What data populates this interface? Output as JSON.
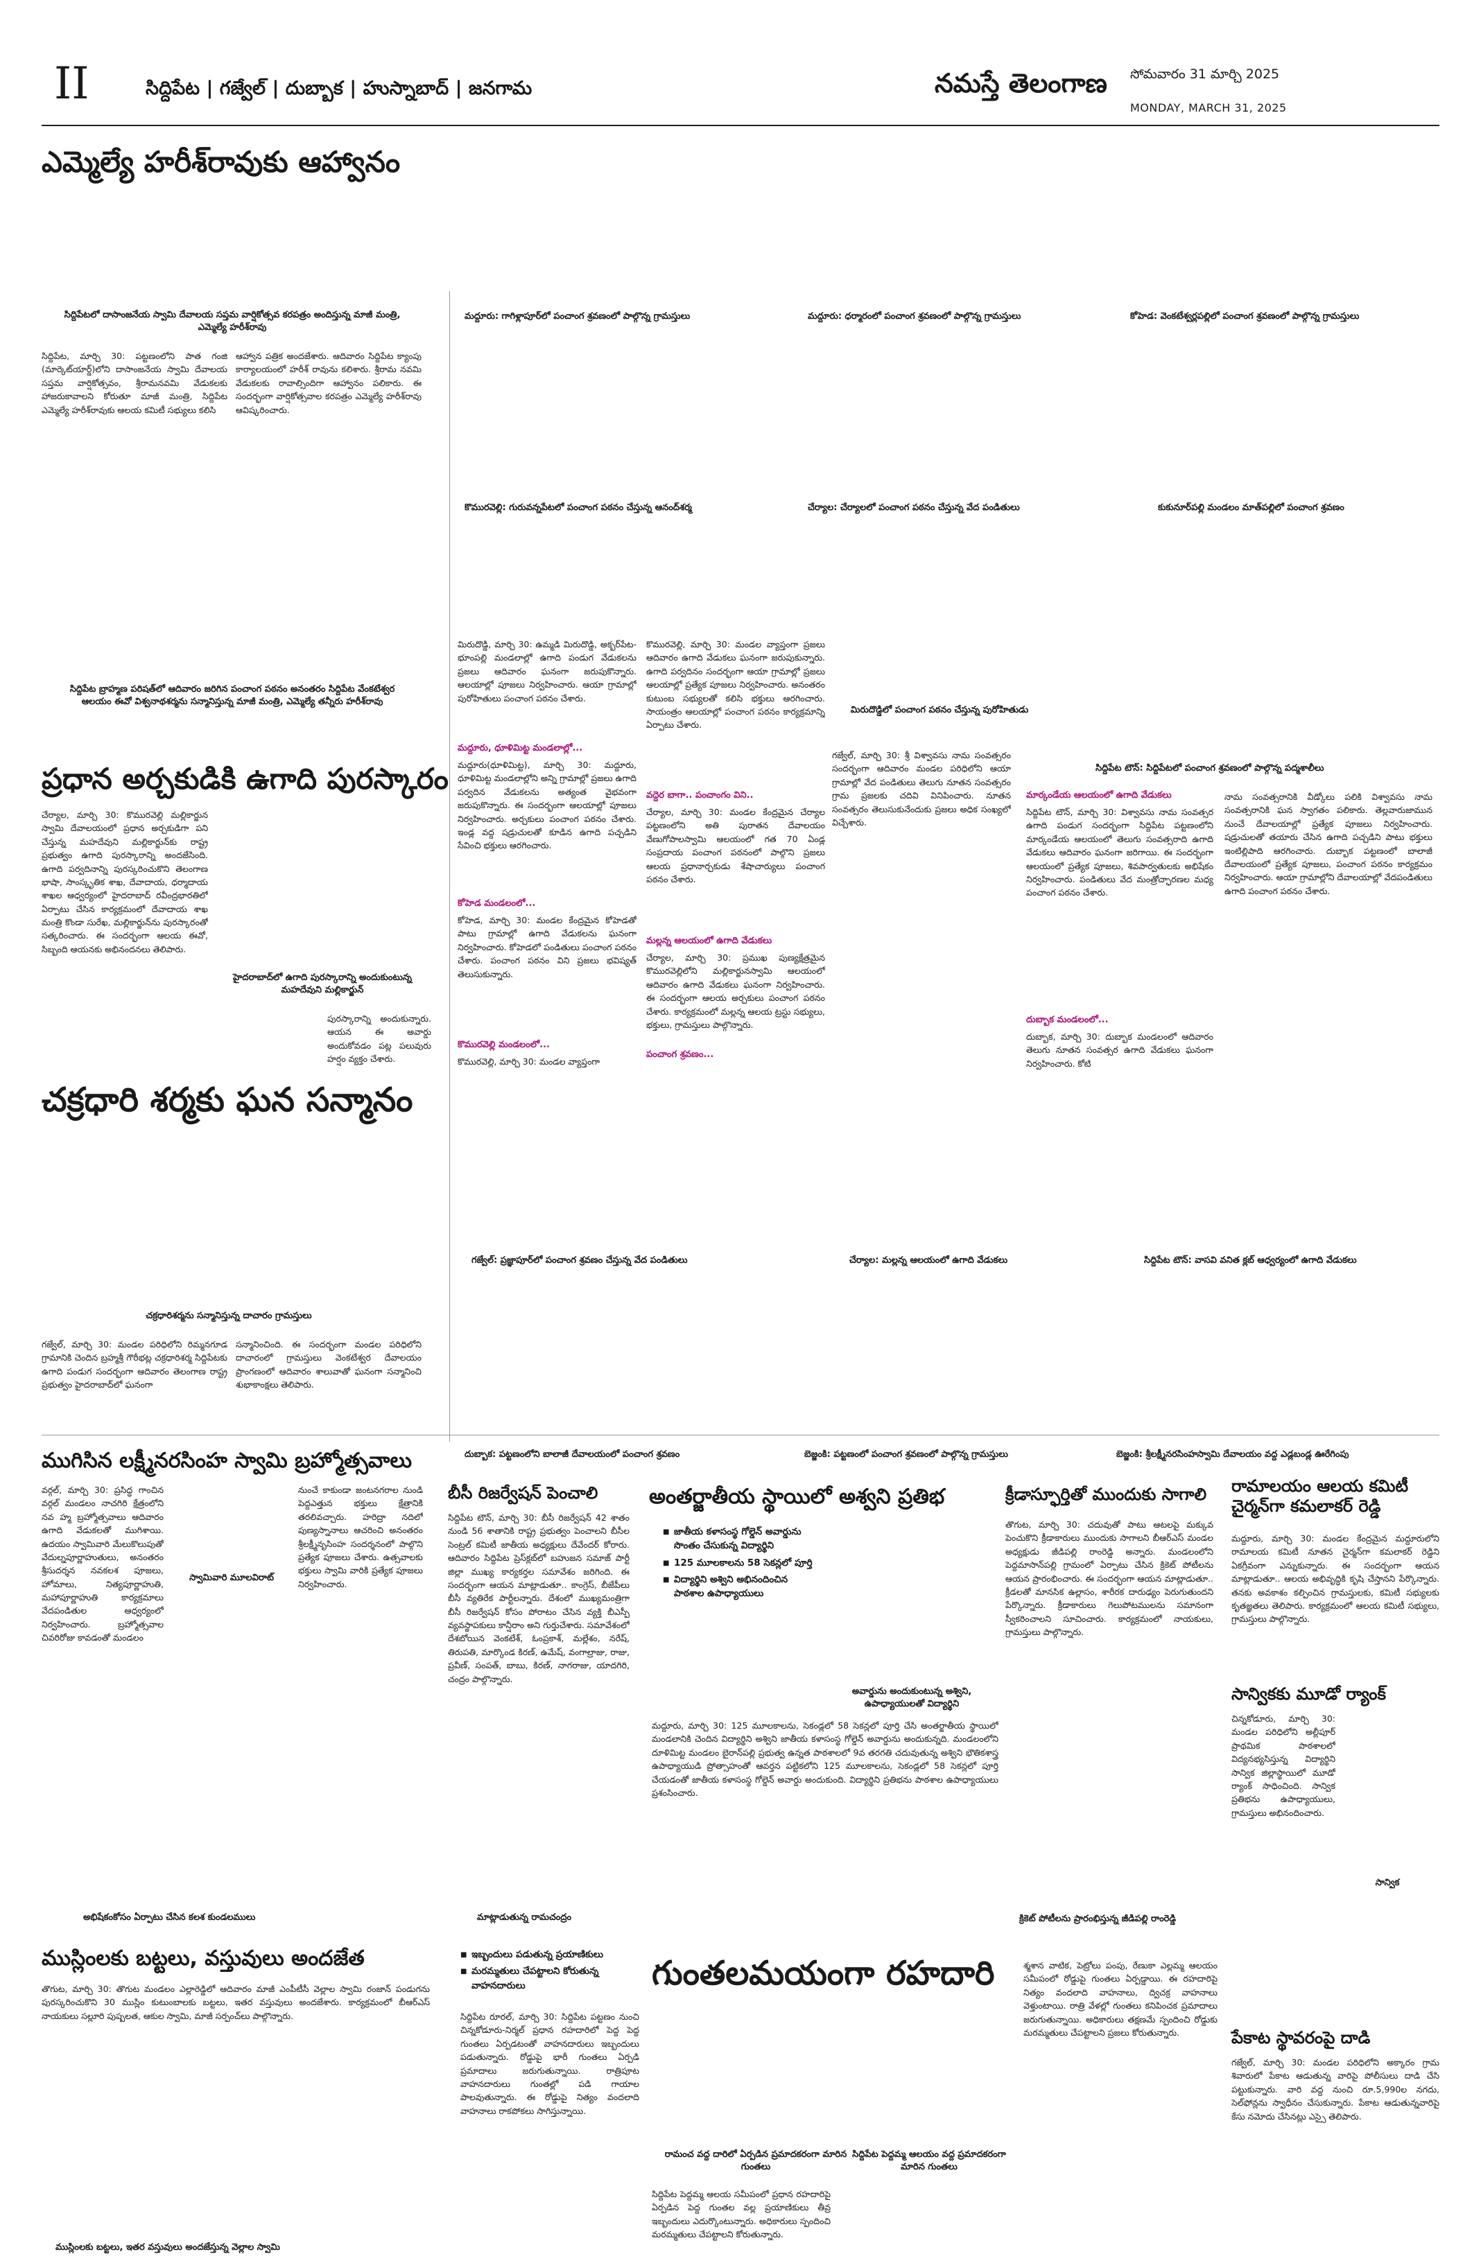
{
  "masthead": {
    "page_number": "II",
    "districts": "సిద్దిపేట | గజ్వేల్ | దుబ్బాక | హుస్నాబాద్ | జనగామ",
    "logo": "నమస్తే తెలంగాణ",
    "date_te": "సోమవారం 31 మార్చి 2025",
    "date_en": "MONDAY, MARCH 31, 2025"
  },
  "story1": {
    "headline": "ఎమ్మెల్యే హరీశ్‌రావుకు ఆహ్వానం",
    "caption": "సిద్దిపేటలో దాసాంజనేయ స్వామి దేవాలయ సప్తమ వార్షికోత్సవ కరపత్రం అందిస్తున్న మాజీ మంత్రి, ఎమ్మెల్యే హరీశ్‌రావు",
    "body_left": "సిద్దిపేట, మార్చి 30: పట్టణంలోని పాత గంజి (మార్కెట్‌యార్డ్)లోని దాసాంజనేయ స్వామి దేవాలయ సప్తమ వార్షికోత్సవం, శ్రీరామనవమి వేడుకలకు హాజరుకావాలని కోరుతూ మాజీ మంత్రి, సిద్దిపేట ఎమ్మెల్యే హరీశ్‌రావుకు ఆలయ కమిటీ సభ్యులు కలిసి",
    "body_right": "ఆహ్వాన పత్రిక అందజేశారు. ఆదివారం సిద్దిపేట క్యాంపు కార్యాలయంలో హరీశ్ రావును కలిశారు. శ్రీరామ నవమి వేడుకలకు రావాల్సిందిగా ఆహ్వానం పలికారు. ఈ సందర్భంగా వార్షికోత్సవాల కరపత్రం ఎమ్మెల్యే హరీశ్‌రావు ఆవిష్కరించారు."
  },
  "photo_captions_row1": [
    "మద్దూరు: గాగిళ్లాపూర్‌లో పంచాంగ శ్రవణంలో పాల్గొన్న గ్రామస్తులు",
    "మద్దూరు: ధర్మారంలో పంచాంగ శ్రవణంలో పాల్గొన్న గ్రామస్తులు",
    "కోహెడ: వెంకటేశ్వర్లపల్లిలో పంచాంగ శ్రవణంలో పాల్గొన్న గ్రామస్తులు"
  ],
  "photo_captions_row2": [
    "కొమురవెల్లి: గురువన్నపేటలో పంచాంగ పఠనం చేస్తున్న ఆనంద్‌శర్మ",
    "చేర్యాల: చేర్యాలలో పంచాంగ పఠనం చేస్తున్న వేద పండితులు",
    "కుకునూర్‌పల్లి మండలం మాత్‌పల్లిలో పంచాంగ శ్రవణం"
  ],
  "story2": {
    "caption": "సిద్దిపేట బ్రాహ్మణ పరిషత్‌లో ఆదివారం జరిగిన పంచాంగ పఠనం అనంతరం సిద్దిపేట వేంకటేశ్వర ఆలయం ఈవో విశ్వనాథశర్మను సన్మానిస్తున్న మాజీ మంత్రి, ఎమ్మెల్యే తన్నీరు హరీశ్‌రావు",
    "headline": "ప్రధాన అర్చకుడికి ఉగాది పురస్కారం",
    "body": "చేర్యాల, మార్చి 30: కొమురవెల్లి మల్లికార్జున స్వామి దేవాలయంలో ప్రధాన అర్చకుడిగా పని చేస్తున్న మహదేవుని మల్లికార్జున్‌కు రాష్ట్ర ప్రభుత్వం ఉగాది పురస్కారాన్ని అందజేసింది. ఉగాది పర్వదినాన్ని పురస్కరించుకొని తెలంగాణ భాషా, సాంస్కృతిక శాఖ, దేవాదాయ, ధర్మాదాయ శాఖల ఆధ్వర్యంలో హైదరాబాద్ రవీంద్రభారతిలో ఏర్పాటు చేసిన కార్యక్రమంలో దేవాదాయ శాఖ మంత్రి కొండా సురేఖ, మల్లికార్జున్‌ను పురస్కారంతో సత్కరించారు. ఈ సందర్భంగా ఆలయ ఈవో, సిబ్బంది ఆయనకు అభినందనలు తెలిపారు.",
    "photo_caption": "హైదరాబాద్‌లో ఉగాది పురస్కారాన్ని అందుకుంటున్న మహదేవుని మల్లికార్జున్",
    "body_tail": "పురస్కారాన్ని అందుకున్నారు. ఆయన ఈ అవార్డు అందుకోవడం పట్ల పలువురు హర్షం వ్యక్తం చేశారు."
  },
  "story3": {
    "headline": "చక్రధారి శర్మకు ఘన సన్మానం",
    "caption": "చక్రధారిశర్మను సన్మానిస్తున్న దాచారం గ్రామస్తులు",
    "body_left": "గజ్వేల్, మార్చి 30: మండల పరిధిలోని రిమ్మనగూడ గ్రామానికి చెందిన బ్రహ్మశ్రీ గౌరీభట్ల చక్రధారిశర్మ సిద్దిపేటకు ఉగాది పండుగ సందర్భంగా ఆదివారం తెలంగాణ రాష్ట్ర ప్రభుత్వం హైదరాబాద్‌లో ఘనంగా",
    "body_right": "సన్మానించింది. ఈ సందర్భంగా మండల పరిధిలోని దాచారంలో గ్రామస్తులు వెంకటేశ్వర దేవాలయం ప్రాంగణంలో ఆదివారం శాలువాతో ఘనంగా సన్మానించి శుభాకాంక్షలు తెలిపారు."
  },
  "center_column": {
    "body_a": "మిరుదొడ్డి, మార్చి 30: ఉమ్మడి మిరుదొడ్డి, అక్బర్‌పేట-భూంపల్లి మండలాల్లో ఉగాది పండుగ వేడుకలను ప్రజలు ఆదివారం ఘనంగా జరుపుకొన్నారు. ఆలయాల్లో పూజలు నిర్వహించారు. ఆయా గ్రామాల్లో పురోహితులు పంచాంగ పఠనం చేశారు.",
    "sub_a": "మద్దూరు, ధూళిమిట్ట మండలాల్లో...",
    "body_b": "మద్దూరు(ధూళిమిట్ట), మార్చి 30: మద్దూరు, ధూళిమిట్ట మండలాల్లోని అన్ని గ్రామాల్లో ప్రజలు ఉగాది పర్వదిన వేడుకలను అత్యంత వైభవంగా జరుపుకొన్నారు. ఈ సందర్భంగా ఆలయాల్లో పూజలు నిర్వహించారు. అర్చకులు పంచాంగ పఠనం చేశారు. ఇండ్ల వద్ద షడ్రుచులతో కూడిన ఉగాది పచ్చడిని సేవించి భక్తులు ఆరగించారు.",
    "sub_b": "కోహెడ మండలంలో...",
    "body_c": "కోహెడ, మార్చి 30: మండల కేంద్రమైన కోహెడతో పాటు గ్రామాల్లో ఉగాది వేడుకలను ఘనంగా నిర్వహించారు. కోహెడలో పండితులు పంచాంగ పఠనం చేశారు. పంచాంగ పఠనం విని ప్రజలు భవిష్యత్‌ తెలుసుకున్నారు.",
    "sub_c": "కొమురవెల్లి మండలంలో...",
    "body_d": "కొమురవెల్లి, మార్చి 30: మండల వ్యాప్తంగా ప్రజలు ఆదివారం ఉగాది వేడుకలు ఘనంగా జరుపుకున్నారు. ఉగాది పర్వదినం సందర్భంగా ఆయా గ్రామాల్లో ప్రజలు ఆలయాల్లో ప్రత్యేక పూజలు నిర్వహించారు. అనంతరం కుటుంబ సభ్యులతో కలిసి భక్తులు ఆరగించారు. సాయంత్రం ఆలయాల్లో పంచాంగ పఠనం కార్యక్రమాన్ని ఏర్పాటు చేశారు.",
    "sub_d": "వద్దెర బాగా.. పంచాంగం విని..",
    "body_e": "చేర్యాల, మార్చి 30: మండల కేంద్రమైన చేర్యాల పట్టణంలోని అతి పురాతన దేవాలయం వేణుగోపాలస్వామి ఆలయంలో గత 70 ఏండ్ల సంప్రదాయ పంచాంగ పఠనంలో పాల్గొని ప్రజలు ఆలయ ప్రధానార్చకుడు శేషాచార్యులు పంచాంగ పఠనం చేశారు.",
    "sub_e": "మల్లన్న ఆలయంలో ఉగాది వేడుకలు",
    "body_f": "చేర్యాల, మార్చి 30: ప్రముఖ పుణ్యక్షేత్రమైన కొమురవెల్లిలోని మల్లికార్జునస్వామి ఆలయంలో ఆదివారం ఉగాది వేడుకలు ఘనంగా నిర్వహించారు. ఈ సందర్భంగా ఆలయ అర్చకులు పంచాంగ పఠనం చేశారు. కార్యక్రమంలో మల్లన్న ఆలయ ట్రస్టు సభ్యులు, భక్తులు, గ్రామస్తులు పాల్గొన్నారు.",
    "sub_f": "పంచాంగ శ్రవణం...",
    "body_g": "గజ్వేల్, మార్చి 30: శ్రీ విశ్వావసు నామ సంవత్సరం సందర్భంగా ఆదివారం మండల పరిధిలోని ఆయా గ్రామాల్లో వేద పండితులు తెలుగు నూతన సంవత్సరం గ్రామ ప్రజలకు చదివి వినిపించారు. నూతన సంవత్సరం తెలుసుకునేందుకు ప్రజలు అధిక సంఖ్యలో విచ్చేశారు.",
    "caption_mid": "మిరుదొడ్డిలో పంచాంగ పఠనం చేస్తున్న పురోహితుడు"
  },
  "story4": {
    "caption": "సిద్దిపేట టౌన్: సిద్దిపేటలో పంచాంగ శ్రవణంలో పాల్గొన్న పద్మశాలీలు",
    "sub_a": "మార్కండేయ ఆలయంలో ఉగాది వేడుకలు",
    "body_a": "సిద్దిపేట టౌన్, మార్చి 30: విశ్వావసు నామ సంవత్సర ఉగాది పండుగ సందర్భంగా సిద్దిపేట పట్టణంలోని మార్కండేయ ఆలయంలో తెలుగు సంవత్సరాది ఉగాది వేడుకలు ఆదివారం ఘనంగా జరిగాయి. ఈ సందర్భంగా ఆలయంలో ప్రత్యేక పూజలు, శివపార్వతులకు అభిషేకం నిర్వహించారు. పండితులు వేద మంత్రోచ్ఛారణల మధ్య పంచాంగ పఠనం చేశారు.",
    "sub_b": "దుబ్బాక మండలంలో...",
    "body_b": "దుబ్బాక, మార్చి 30: దుబ్బాక మండలంలో ఆదివారం తెలుగు నూతన సంవత్సర ఉగాది వేడుకలు ఘనంగా నిర్వహించారు. కోటి",
    "body_c": "నామ సంవత్సరానికి వీడ్కోలు పలికి విశ్వావసు నామ సంవత్సరానికి ఘన స్వాగతం పలికారు. తెల్లవారుజామున నుంచే దేవాలయాల్లో ప్రత్యేక పూజలు నిర్వహించారు. షడ్రుచులతో తయారు చేసిన ఉగాది పచ్చడిని పాటు భక్తులు ఇంటిల్లిపాది ఆరగించారు. దుబ్బాక పట్టణంలో బాలాజీ దేవాలయంలో ప్రత్యేక పూజలు, పంచాంగ పఠనం కార్యక్రమం నిర్వహించారు. ఆయా గ్రామాల్లోని దేవాలయాల్లో వేదపండితులు ఉగాది పంచాంగ పఠనం చేశారు."
  },
  "photo_captions_row3": [
    "గజ్వేల్: ప్రజ్ఞాపూర్‌లో పంచాంగ శ్రవణం చేస్తున్న వేద పండితులు",
    "చేర్యాల: మల్లన్న ఆలయంలో ఉగాది వేడుకలు",
    "సిద్దిపేట టౌన్: వాసవి వనిత క్లబ్ ఆధ్వర్యంలో ఉగాది వేడుకలు"
  ],
  "story5": {
    "headline": "ముగిసిన లక్ష్మీనరసింహ స్వామి బ్రహ్మోత్సవాలు",
    "body": "వర్గల్, మార్చి 30: ప్రసిద్ధ గాంచిన వర్గల్ మండలం నాచగిరి క్షేత్రంలోని నవ హ్మ బ్రహ్మోత్సవాలు ఆదివారం ఉగాది వేడుకలతో ముగిశాయి. ఉదయం స్వామివారి మేలుకొలుపుతో వేదుల్నపూర్ణాహుతులు, అనంతరం శ్రీసుదర్శన నవకలశ పూజలు, హోమాలు, నిత్యపూర్ణాహుతి, మహాపూర్ణాహుతి కార్యక్రమాలు వేదపండితుల ఆధ్వర్యంలో నిర్వహించారు. బ్రహ్మోత్సవాల చివరిరోజు కావడంతో మండలం",
    "photo_caption": "స్వామివారి మూలవిరాట్",
    "body_right": "నుంచే కాకుండా జంటనగరాల నుండి పెద్దఎత్తున భక్తులు క్షేత్రానికి తరలివచ్చారు. హరిద్రా నదిలో పుణ్యస్నానాలు ఆచరించి అనంతరం శ్రీలక్ష్మీనృసింహ సందర్శనంలో పాల్గొని ప్రత్యేక పూజలు చేశారు. ఉత్సవాలకు భక్తులు స్వామి వారికి ప్రత్యేక పూజలు నిర్వహించారు."
  },
  "photo_captions_row4": [
    "దుబ్బాక: పట్టణంలోని బాలాజీ దేవాలయంలో పంచాంగ శ్రవణం",
    "బెజ్జంకి: పట్టణంలో పంచాంగ శ్రవణంలో పాల్గొన్న గ్రామస్తులు",
    "బెజ్జంకి: శ్రీలక్ష్మీనరసింహస్వామి దేవాలయం వద్ద ఎడ్లబండ్ల ఊరేగింపు"
  ],
  "story6": {
    "headline": "బీసీ రిజర్వేషన్ పెంచాలి",
    "body": "సిద్దిపేట టౌన్, మార్చి 30: బీసీ రిజర్వేషన్ 42 శాతం నుండి 56 శాతానికి రాష్ట్ర ప్రభుత్వం పెంచాలని బీసీల సెంట్రల్ కమిటీ జాతీయ అధ్యక్షులు దేవేందర్ కోరారు. ఆదివారం సిద్దిపేట ప్రెస్‌క్లబ్‌లో బహుజన సమాజ్ పార్టీ జిల్లా ముఖ్య కార్యకర్తల సమావేశం జరిగింది. ఈ సందర్భంగా ఆయన మాట్లాడుతూ.. కాంగ్రెస్, బీజేపీలు బీసీ వ్యతిరేక పార్టీలన్నారు. దేశంలో ముఖ్యమంత్రిగా బీసీ రిజర్వేషన్ కోసం పోరాటం చేసిన వ్యక్తి బీఎస్పీ వ్యవస్థాపకులు కాన్షీరాం అని గుర్తుచేశారు. సమావేశంలో దేశబోయిన వెంకటేశ్, ఓంప్రకాశ్, మల్లేశం, నరేష్, తిరుపతి, మార్కొండ కిరణ్, ఉమేష్, వంగాల్రాజు, రాజు, ప్రవీణ్, సంపత్, బాబు, కిరణ్, నాగరాజు, యాదగిరి, చంద్రం పాల్గొన్నారు."
  },
  "story7": {
    "headline": "అంతర్జాతీయ స్థాయిలో అశ్వని ప్రతిభ",
    "bullets": [
      "జాతీయ కళాసంస్థ గోల్డెన్ అవార్డును సొంతం చేసుకున్న విద్యార్థిని",
      "125 మూలకాలను 58 సెకన్లలో పూర్తి",
      "విద్యార్థిని అశ్విని అభినందించిన పాఠశాల ఉపాధ్యాయులు"
    ],
    "photo_caption": "అవార్డును అందుకుంటున్న అశ్విని, ఉపాధ్యాయులతో విద్యార్థిని",
    "body": "మద్దూరు, మార్చి 30: 125 మూలకాలను, సెకండ్లలో 58 సెకన్లలో పూర్తి చేసి అంతర్జాతీయ స్థాయిలో మండలానికి చెందిన విద్యార్థిని అశ్విని జాతీయ కళాసంస్థ గోల్డెన్ అవార్డును అందుకున్నది. మండలంలోని దూళిమిట్ట మండలం బైరాన్‌పల్లి ప్రభుత్వ ఉన్నత పాఠశాలలో 9వ తరగతి చదువుతున్న అశ్విని భౌతికశాస్త్ర ఉపాధ్యాయుడి ప్రోత్సాహంతో ఆవర్తన పట్టికలోని 125 మూలకాలను, సెకండ్లలో 58 సెకన్లలో పూర్తి చేయడంతో జాతీయ కళాసంస్థ గోల్డెన్ అవార్డు అందుకుంది. విద్యార్థిని ప్రతిభను పాఠశాల ఉపాధ్యాయులు ప్రశంసించారు."
  },
  "story8": {
    "headline": "క్రీడాస్ఫూర్తితో ముందుకు సాగాలి",
    "body": "తొగుట, మార్చి 30: చదువుతో పాటు ఆటలపై మక్కువ పెంచుకొని క్రీడాకారులు ముందుకు సాగాలని బీఆర్‌ఎస్ మండల అధ్యక్షుడు జీడిపల్లి రాంరెడ్డి అన్నారు. మండలంలోని పెద్దమాసాన్‌పల్లి గ్రామంలో ఏర్పాటు చేసిన క్రికెట్ పోటీలను ఆయన ప్రారంభించారు. ఈ సందర్భంగా ఆయన మాట్లాడుతూ.. క్రీడలతో మానసిక ఉల్లాసం, శారీరక దారుఢ్యం పెరుగుతుందని పేర్కొన్నారు. క్రీడాకారులు గెలుపోటములను సమానంగా స్వీకరించాలని సూచించారు. కార్యక్రమంలో నాయకులు, గ్రామస్తులు పాల్గొన్నారు.",
    "photo_caption": "క్రికెట్ పోటీలను ప్రారంభిస్తున్న జీడిపల్లి రాంరెడ్డి"
  },
  "story9": {
    "headline": "రామాలయం ఆలయ కమిటీ చైర్మన్‌గా కమలాకర్ రెడ్డి",
    "body": "మద్దూరు, మార్చి 30: మండల కేంద్రమైన మద్దూరులోని రామాలయ కమిటీ నూతన చైర్మన్‌గా కమలాకర్ రెడ్డిని ఏకగ్రీవంగా ఎన్నుకున్నారు. ఈ సందర్భంగా ఆయన మాట్లాడుతూ.. ఆలయ అభివృద్ధికి కృషి చేస్తానని పేర్కొన్నారు. తనకు అవకాశం కల్పించిన గ్రామస్తులకు, కమిటీ సభ్యులకు కృతజ్ఞతలు తెలిపారు. కార్యక్రమంలో ఆలయ కమిటీ సభ్యులు, గ్రామస్తులు పాల్గొన్నారు."
  },
  "story10": {
    "headline": "సాన్వికకు మూడో ర్యాంక్",
    "body": "చిన్నకోడూరు, మార్చి 30: మండల పరిధిలోని అల్లీపూర్ ప్రాథమిక పాఠశాలలో విద్యనభ్యసిస్తున్న విద్యార్థిని సాన్విక జిల్లాస్థాయిలో మూడో ర్యాంక్ సాధించింది. సాన్విక ప్రతిభను ఉపాధ్యాయులు, గ్రామస్తులు అభినందించారు.",
    "photo_caption": "సాన్విక"
  },
  "story11": {
    "headline": "పేకాట స్థావరంపై దాడి",
    "body": "గజ్వేల్, మార్చి 30: మండల పరిధిలోని అక్కారం గ్రామ శివారులో పేకాట ఆడుతున్న వారిపై పోలీసులు దాడి చేసి పట్టుకున్నారు. వారి వద్ద నుంచి రూ.5,990ల నగదు, సెల్‌ఫోన్లను స్వాధీనం చేసుకున్నారు. పేకాట ఆడుతున్నవారిపై కేసు నమోదు చేసినట్లు ఎస్సై తెలిపారు."
  },
  "photo_captions_row5": [
    "అభిషేకంకోసం ఏర్పాటు చేసిన కలశ కుండలములు",
    "మాట్లాడుతున్న రామచంద్రం"
  ],
  "story12": {
    "headline": "ముస్లింలకు బట్టలు, వస్తువులు అందజేత",
    "body": "తొగుట, మార్చి 30: తొగుట మండలం ఎల్లారెడ్డిలో ఆదివారం మాజీ ఎంపీటీసీ వెల్లాల స్వామి రంజాన్ పండుగను పురస్కరించుకొని 30 ముస్లిం కుటుంబాలకు బట్టలు, ఇతర వస్తువులు అందజేశారు. కార్యక్రమంలో బీఆర్‌ఎస్ నాయకులు సల్లూరి పుష్పలత, ఆకుల స్వామి, మాజీ సర్పంచ్‌లు పాల్గొన్నారు.",
    "caption": "ముస్లింలకు బట్టలు, ఇతర వస్తువులు అందజేస్తున్న వెల్లాల స్వామి"
  },
  "story13": {
    "bullets": [
      "ఇబ్బందులు పడుతున్న ప్రయాణికులు",
      "మరమ్మతులు చేపట్టాలని కోరుతున్న వాహనదారులు"
    ],
    "headline": "గుంతలమయంగా రహదారి",
    "body_left": "సిద్దిపేట రూరల్, మార్చి 30: సిద్దిపేట పట్టణం నుంచి చిన్నకోడూరు-నిర్మల్ ప్రధాన రహదారిలో పెద్ద పెద్ద గుంతలు ఏర్పడటంతో వాహనదారులు ఇబ్బందులు పడుతున్నారు. రోడ్డుపై భారీ గుంతలు ఏర్పడి ప్రమాదాలు జరుగుతున్నాయి. రాత్రిపూట వాహనదారులు గుంతల్లో పడి గాయాల పాలవుతున్నారు. ఈ రోడ్డుపై నిత్యం వందలాది వాహనాలు రాకపోకలు సాగిస్తున్నాయి.",
    "caption_left": "రామంచ వద్ద దారిలో ఏర్పడిన ప్రమాదకరంగా మారిన గుంతలు",
    "body_mid": "సిద్దిపేట పెద్దమ్మ ఆలయ సమీపంలో ప్రధాన రహదారిపై ఏర్పడిన పెద్ద గుంతల వల్ల ప్రయాణికులు తీవ్ర ఇబ్బందులు ఎదుర్కొంటున్నారు. అధికారులు స్పందించి మరమ్మతులు చేపట్టాలని కోరుతున్నారు.",
    "caption_mid": "సిద్దిపేట పెద్దమ్మ ఆలయం వద్ద ప్రమాదకరంగా మారిన గుంతలు",
    "body_right": "శ్మశాన వాటిక, పెట్రోలు పంపు, రేణుకా ఎల్లమ్మ ఆలయం సమీపంలో రోడ్డుపై గుంతలు ఏర్పడ్డాయి. ఈ రహదారిపై నిత్యం వందలాది వాహనాలు, ద్విచక్ర వాహనాలు వెళ్తుంటాయి. రాత్రి వేళల్లో గుంతలు కనిపించక ప్రమాదాలు జరుగుతున్నాయి. అధికారులు తక్షణమే స్పందించి రోడ్డుకు మరమ్మతులు చేపట్టాలని ప్రజలు కోరుతున్నారు."
  }
}
